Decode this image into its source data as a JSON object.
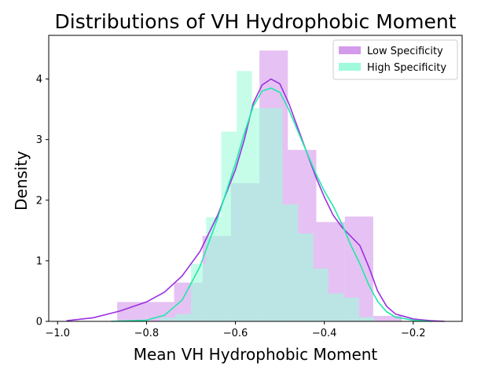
{
  "chart_data": {
    "type": "histogram",
    "title": "Distributions of VH Hydrophobic Moment",
    "xlabel": "Mean VH Hydrophobic Moment",
    "ylabel": "Density",
    "xlim": [
      -1.02,
      -0.09
    ],
    "ylim": [
      0,
      4.72
    ],
    "xticks": [
      -1.0,
      -0.8,
      -0.6,
      -0.4,
      -0.2
    ],
    "xtick_labels": [
      "−1.0",
      "−0.8",
      "−0.6",
      "−0.4",
      "−0.2"
    ],
    "yticks": [
      0,
      1,
      2,
      3,
      4
    ],
    "ytick_labels": [
      "0",
      "1",
      "2",
      "3",
      "4"
    ],
    "legend_position": "top-right",
    "series": [
      {
        "name": "Low Specificity",
        "color": "#9b30e0",
        "bar_color": "#d49aeb",
        "bins": [
          {
            "x0": -0.866,
            "x1": -0.802,
            "y": 0.32
          },
          {
            "x0": -0.802,
            "x1": -0.738,
            "y": 0.32
          },
          {
            "x0": -0.738,
            "x1": -0.674,
            "y": 0.64
          },
          {
            "x0": -0.674,
            "x1": -0.61,
            "y": 1.41
          },
          {
            "x0": -0.61,
            "x1": -0.546,
            "y": 2.28
          },
          {
            "x0": -0.546,
            "x1": -0.482,
            "y": 4.47
          },
          {
            "x0": -0.482,
            "x1": -0.418,
            "y": 2.83
          },
          {
            "x0": -0.418,
            "x1": -0.354,
            "y": 1.64
          },
          {
            "x0": -0.354,
            "x1": -0.29,
            "y": 1.73
          },
          {
            "x0": -0.29,
            "x1": -0.226,
            "y": 0.09
          }
        ],
        "kde": [
          [
            -0.98,
            0.01
          ],
          [
            -0.92,
            0.06
          ],
          [
            -0.86,
            0.17
          ],
          [
            -0.8,
            0.32
          ],
          [
            -0.76,
            0.48
          ],
          [
            -0.72,
            0.75
          ],
          [
            -0.68,
            1.15
          ],
          [
            -0.64,
            1.75
          ],
          [
            -0.6,
            2.5
          ],
          [
            -0.58,
            3.0
          ],
          [
            -0.56,
            3.6
          ],
          [
            -0.54,
            3.9
          ],
          [
            -0.52,
            4.0
          ],
          [
            -0.5,
            3.92
          ],
          [
            -0.48,
            3.6
          ],
          [
            -0.46,
            3.2
          ],
          [
            -0.44,
            2.8
          ],
          [
            -0.42,
            2.4
          ],
          [
            -0.4,
            2.05
          ],
          [
            -0.38,
            1.75
          ],
          [
            -0.36,
            1.55
          ],
          [
            -0.34,
            1.4
          ],
          [
            -0.32,
            1.25
          ],
          [
            -0.3,
            0.9
          ],
          [
            -0.28,
            0.5
          ],
          [
            -0.26,
            0.25
          ],
          [
            -0.24,
            0.12
          ],
          [
            -0.2,
            0.04
          ],
          [
            -0.16,
            0.01
          ],
          [
            -0.13,
            0.0
          ]
        ]
      },
      {
        "name": "High Specificity",
        "color": "#1de9a8",
        "bar_color": "#9ffbdb",
        "bins": [
          {
            "x0": -0.769,
            "x1": -0.735,
            "y": 0.06
          },
          {
            "x0": -0.735,
            "x1": -0.7,
            "y": 0.12
          },
          {
            "x0": -0.7,
            "x1": -0.666,
            "y": 0.95
          },
          {
            "x0": -0.666,
            "x1": -0.632,
            "y": 1.72
          },
          {
            "x0": -0.632,
            "x1": -0.597,
            "y": 3.13
          },
          {
            "x0": -0.597,
            "x1": -0.563,
            "y": 4.13
          },
          {
            "x0": -0.563,
            "x1": -0.528,
            "y": 3.52
          },
          {
            "x0": -0.528,
            "x1": -0.494,
            "y": 3.52
          },
          {
            "x0": -0.494,
            "x1": -0.459,
            "y": 1.93
          },
          {
            "x0": -0.459,
            "x1": -0.425,
            "y": 1.45
          },
          {
            "x0": -0.425,
            "x1": -0.391,
            "y": 0.87
          },
          {
            "x0": -0.391,
            "x1": -0.356,
            "y": 0.46
          },
          {
            "x0": -0.356,
            "x1": -0.322,
            "y": 0.39
          },
          {
            "x0": -0.322,
            "x1": -0.288,
            "y": 0.07
          },
          {
            "x0": -0.288,
            "x1": -0.253,
            "y": 0.0
          }
        ],
        "kde": [
          [
            -0.88,
            0.0
          ],
          [
            -0.8,
            0.02
          ],
          [
            -0.76,
            0.1
          ],
          [
            -0.72,
            0.35
          ],
          [
            -0.68,
            0.9
          ],
          [
            -0.64,
            1.7
          ],
          [
            -0.6,
            2.6
          ],
          [
            -0.58,
            3.1
          ],
          [
            -0.56,
            3.55
          ],
          [
            -0.54,
            3.8
          ],
          [
            -0.52,
            3.85
          ],
          [
            -0.5,
            3.78
          ],
          [
            -0.48,
            3.5
          ],
          [
            -0.46,
            3.15
          ],
          [
            -0.44,
            2.8
          ],
          [
            -0.42,
            2.45
          ],
          [
            -0.4,
            2.15
          ],
          [
            -0.38,
            1.9
          ],
          [
            -0.36,
            1.6
          ],
          [
            -0.34,
            1.25
          ],
          [
            -0.32,
            0.95
          ],
          [
            -0.3,
            0.6
          ],
          [
            -0.28,
            0.33
          ],
          [
            -0.26,
            0.16
          ],
          [
            -0.24,
            0.07
          ],
          [
            -0.2,
            0.02
          ],
          [
            -0.16,
            0.0
          ]
        ]
      }
    ]
  }
}
